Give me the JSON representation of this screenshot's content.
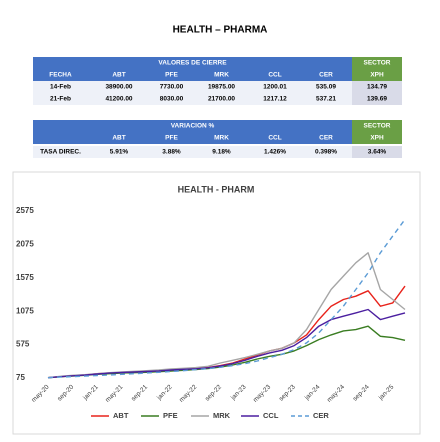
{
  "title": "HEALTH – PHARMA",
  "table1": {
    "group_header": "VALORES DE CIERRE",
    "sector_header": "SECTOR",
    "columns": [
      "FECHA",
      "ABT",
      "PFE",
      "MRK",
      "CCL",
      "CER",
      "XPH"
    ],
    "rows": [
      [
        "14-Feb",
        "38900.00",
        "7730.00",
        "19875.00",
        "1200.01",
        "535.09",
        "134.79"
      ],
      [
        "21-Feb",
        "41200.00",
        "8030.00",
        "21700.00",
        "1217.12",
        "537.21",
        "139.69"
      ]
    ]
  },
  "table2": {
    "group_header": "VARIACION %",
    "sector_header": "SECTOR",
    "columns": [
      "ABT",
      "PFE",
      "MRK",
      "CCL",
      "CER",
      "XPH"
    ],
    "rows": [
      [
        "TASA DIREC.",
        "5.91%",
        "3.88%",
        "9.18%",
        "1.426%",
        "0.398%",
        "3.64%"
      ]
    ]
  },
  "chart_data": {
    "type": "line",
    "title": "HEALTH - PHARM",
    "categories": [
      "may-20",
      null,
      "sep-20",
      null,
      "jan-21",
      null,
      "may-21",
      null,
      "sep-21",
      null,
      "jan-22",
      null,
      "may-22",
      null,
      "sep-22",
      null,
      "jan-23",
      null,
      "may-23",
      null,
      "sep-23",
      null,
      "jan-24",
      null,
      "may-24",
      null,
      "sep-24",
      null,
      "jan-25",
      null
    ],
    "series": [
      {
        "name": "ABT",
        "color": "#e8231b",
        "values": [
          80,
          95,
          110,
          120,
          140,
          150,
          160,
          165,
          175,
          185,
          200,
          210,
          215,
          230,
          260,
          300,
          360,
          420,
          480,
          520,
          600,
          720,
          950,
          1150,
          1250,
          1300,
          1380,
          1150,
          1200,
          1450
        ]
      },
      {
        "name": "PFE",
        "color": "#3a7d22",
        "values": [
          80,
          95,
          105,
          115,
          130,
          140,
          150,
          155,
          160,
          170,
          180,
          190,
          200,
          215,
          240,
          270,
          310,
          360,
          400,
          430,
          480,
          560,
          650,
          720,
          780,
          800,
          850,
          700,
          680,
          640
        ]
      },
      {
        "name": "MRK",
        "color": "#a6a6a6",
        "values": [
          80,
          100,
          115,
          125,
          140,
          155,
          165,
          175,
          185,
          195,
          210,
          220,
          230,
          250,
          300,
          340,
          380,
          430,
          480,
          520,
          600,
          800,
          1100,
          1400,
          1600,
          1800,
          1950,
          1400,
          1250,
          1100
        ]
      },
      {
        "name": "CCL",
        "color": "#4b1fa0",
        "values": [
          80,
          95,
          108,
          118,
          135,
          148,
          158,
          165,
          172,
          182,
          195,
          205,
          212,
          228,
          255,
          290,
          340,
          400,
          450,
          490,
          560,
          680,
          850,
          950,
          1000,
          1050,
          1100,
          950,
          1000,
          1050
        ]
      },
      {
        "name": "CER",
        "color": "#5b9bd5",
        "line_style": "dashed",
        "values": [
          80,
          88,
          96,
          104,
          112,
          120,
          130,
          140,
          150,
          160,
          172,
          185,
          200,
          215,
          235,
          260,
          290,
          330,
          380,
          430,
          500,
          600,
          750,
          950,
          1150,
          1400,
          1650,
          1950,
          2200,
          2450
        ]
      }
    ],
    "ylim": [
      75,
      2575
    ],
    "yticks": [
      75,
      575,
      1075,
      1575,
      2075,
      2575
    ],
    "grid": false,
    "legend": "bottom"
  }
}
